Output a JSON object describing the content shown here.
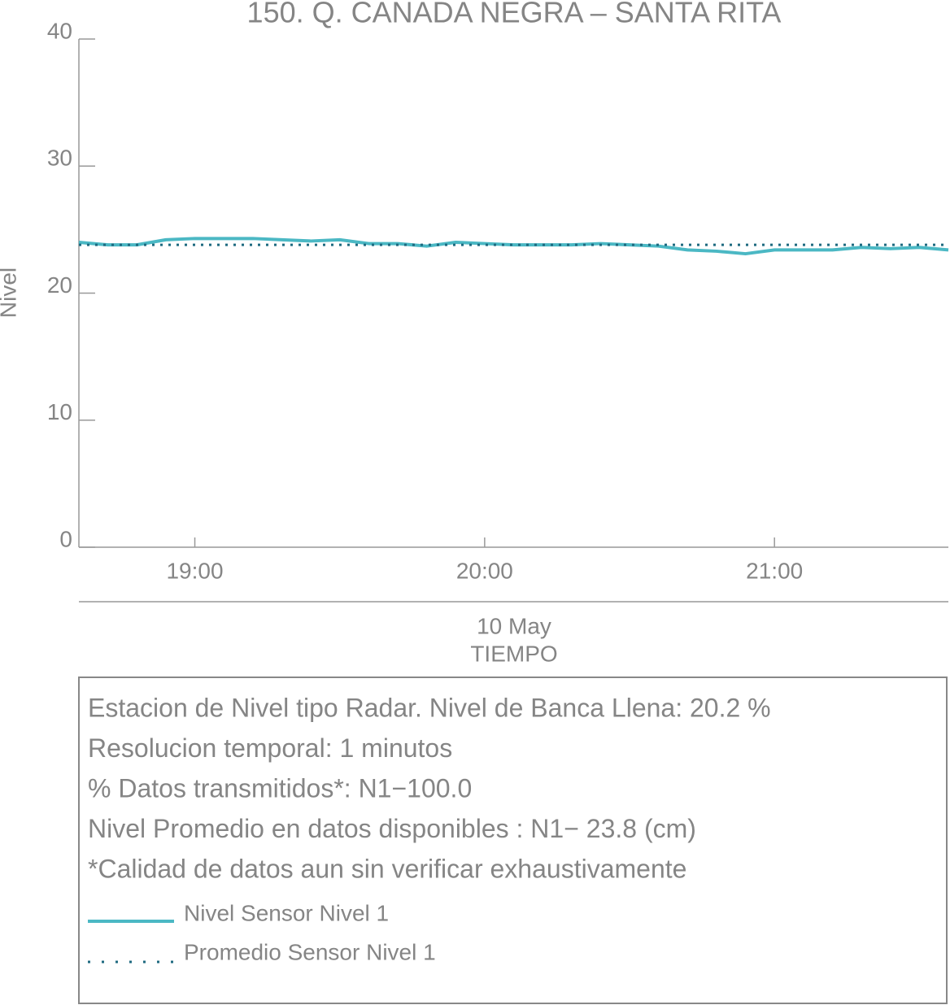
{
  "chart_data": {
    "type": "line",
    "title": "150. Q. CANADA NEGRA – SANTA RITA",
    "ylabel": "Nivel",
    "xlabel": "TIEMPO",
    "date_label": "10 May",
    "x": [
      "18:36",
      "18:42",
      "18:48",
      "18:54",
      "19:00",
      "19:06",
      "19:12",
      "19:18",
      "19:24",
      "19:30",
      "19:36",
      "19:42",
      "19:48",
      "19:54",
      "20:00",
      "20:06",
      "20:12",
      "20:18",
      "20:24",
      "20:30",
      "20:36",
      "20:42",
      "20:48",
      "20:54",
      "21:00",
      "21:06",
      "21:12",
      "21:18",
      "21:24",
      "21:30",
      "21:36"
    ],
    "series": [
      {
        "name": "Nivel Sensor Nivel 1",
        "color": "#4bb8c4",
        "values": [
          24.0,
          23.8,
          23.8,
          24.2,
          24.3,
          24.3,
          24.3,
          24.2,
          24.1,
          24.2,
          23.9,
          23.9,
          23.7,
          24.0,
          23.9,
          23.8,
          23.8,
          23.8,
          23.9,
          23.8,
          23.7,
          23.4,
          23.3,
          23.1,
          23.4,
          23.4,
          23.4,
          23.6,
          23.5,
          23.6,
          23.4
        ]
      }
    ],
    "mean": {
      "name": "Promedio Sensor Nivel 1",
      "color": "#1e6a80",
      "value": 23.8
    },
    "xlim": [
      "18:36",
      "21:36"
    ],
    "xticks": [
      "19:00",
      "20:00",
      "21:00"
    ],
    "ylim": [
      0,
      40
    ],
    "yticks": [
      0,
      10,
      20,
      30,
      40
    ],
    "info": [
      "Estacion de Nivel tipo Radar. Nivel de Banca Llena: 20.2 %",
      "Resolucion temporal: 1 minutos",
      "% Datos transmitidos*: N1−100.0",
      "Nivel Promedio en datos disponibles : N1− 23.8 (cm)",
      "*Calidad de datos aun sin verificar exhaustivamente"
    ]
  }
}
